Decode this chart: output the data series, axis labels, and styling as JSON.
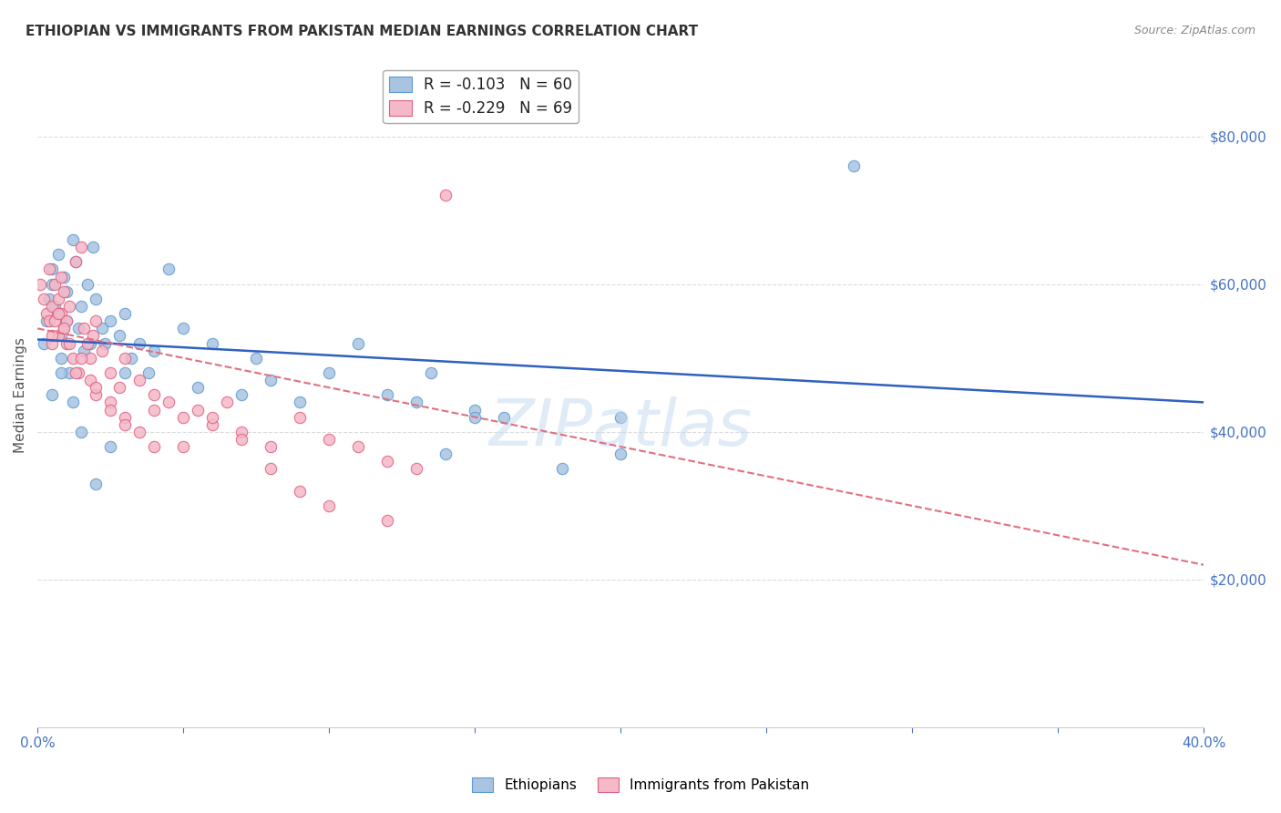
{
  "title": "ETHIOPIAN VS IMMIGRANTS FROM PAKISTAN MEDIAN EARNINGS CORRELATION CHART",
  "source": "Source: ZipAtlas.com",
  "ylabel": "Median Earnings",
  "xlabel": "",
  "xlim": [
    0.0,
    0.4
  ],
  "ylim": [
    0,
    90000
  ],
  "yticks": [
    0,
    20000,
    40000,
    60000,
    80000
  ],
  "ytick_labels": [
    "",
    "$20,000",
    "$40,000",
    "$60,000",
    "$80,000"
  ],
  "xticks": [
    0.0,
    0.05,
    0.1,
    0.15,
    0.2,
    0.25,
    0.3,
    0.35,
    0.4
  ],
  "xtick_labels": [
    "0.0%",
    "",
    "",
    "",
    "",
    "",
    "",
    "",
    "40.0%"
  ],
  "blue_R": -0.103,
  "blue_N": 60,
  "pink_R": -0.229,
  "pink_N": 69,
  "blue_label": "Ethiopians",
  "pink_label": "Immigrants from Pakistan",
  "blue_color": "#a8c4e0",
  "blue_edge": "#5b9bd5",
  "pink_color": "#f4b8c8",
  "pink_edge": "#e06080",
  "trend_blue_color": "#3060c0",
  "trend_pink_color": "#e07080",
  "axis_color": "#4472c4",
  "grid_color": "#cccccc",
  "title_color": "#333333",
  "watermark_color": "#c0d8f0",
  "blue_x": [
    0.002,
    0.003,
    0.004,
    0.005,
    0.005,
    0.006,
    0.007,
    0.007,
    0.008,
    0.008,
    0.009,
    0.01,
    0.01,
    0.011,
    0.012,
    0.013,
    0.014,
    0.015,
    0.016,
    0.017,
    0.018,
    0.019,
    0.02,
    0.022,
    0.023,
    0.025,
    0.028,
    0.03,
    0.032,
    0.035,
    0.038,
    0.04,
    0.045,
    0.05,
    0.055,
    0.06,
    0.07,
    0.075,
    0.08,
    0.09,
    0.1,
    0.11,
    0.12,
    0.13,
    0.135,
    0.14,
    0.15,
    0.16,
    0.18,
    0.2,
    0.005,
    0.008,
    0.012,
    0.015,
    0.02,
    0.025,
    0.03,
    0.15,
    0.2,
    0.28
  ],
  "blue_y": [
    52000,
    55000,
    58000,
    60000,
    62000,
    57000,
    56000,
    64000,
    50000,
    53000,
    61000,
    59000,
    55000,
    48000,
    66000,
    63000,
    54000,
    57000,
    51000,
    60000,
    52000,
    65000,
    58000,
    54000,
    52000,
    55000,
    53000,
    56000,
    50000,
    52000,
    48000,
    51000,
    62000,
    54000,
    46000,
    52000,
    45000,
    50000,
    47000,
    44000,
    48000,
    52000,
    45000,
    44000,
    48000,
    37000,
    43000,
    42000,
    35000,
    42000,
    45000,
    48000,
    44000,
    40000,
    33000,
    38000,
    48000,
    42000,
    37000,
    76000
  ],
  "pink_x": [
    0.001,
    0.002,
    0.003,
    0.004,
    0.004,
    0.005,
    0.005,
    0.006,
    0.006,
    0.007,
    0.007,
    0.008,
    0.008,
    0.009,
    0.009,
    0.01,
    0.01,
    0.011,
    0.012,
    0.013,
    0.014,
    0.015,
    0.016,
    0.017,
    0.018,
    0.019,
    0.02,
    0.022,
    0.025,
    0.028,
    0.03,
    0.035,
    0.04,
    0.045,
    0.05,
    0.055,
    0.06,
    0.065,
    0.07,
    0.08,
    0.09,
    0.1,
    0.11,
    0.12,
    0.13,
    0.005,
    0.007,
    0.009,
    0.011,
    0.013,
    0.015,
    0.018,
    0.02,
    0.025,
    0.03,
    0.035,
    0.04,
    0.05,
    0.06,
    0.07,
    0.08,
    0.09,
    0.1,
    0.12,
    0.14,
    0.02,
    0.025,
    0.03,
    0.04
  ],
  "pink_y": [
    60000,
    58000,
    56000,
    55000,
    62000,
    57000,
    52000,
    60000,
    55000,
    58000,
    53000,
    61000,
    56000,
    59000,
    54000,
    52000,
    55000,
    57000,
    50000,
    63000,
    48000,
    65000,
    54000,
    52000,
    50000,
    53000,
    55000,
    51000,
    48000,
    46000,
    50000,
    47000,
    45000,
    44000,
    42000,
    43000,
    41000,
    44000,
    40000,
    38000,
    42000,
    39000,
    38000,
    36000,
    35000,
    53000,
    56000,
    54000,
    52000,
    48000,
    50000,
    47000,
    45000,
    44000,
    42000,
    40000,
    43000,
    38000,
    42000,
    39000,
    35000,
    32000,
    30000,
    28000,
    72000,
    46000,
    43000,
    41000,
    38000
  ],
  "blue_trend_x": [
    0.0,
    0.4
  ],
  "blue_trend_y": [
    52500,
    44000
  ],
  "pink_trend_x": [
    0.0,
    0.4
  ],
  "pink_trend_y": [
    54000,
    22000
  ],
  "background_color": "#ffffff",
  "fig_width": 14.06,
  "fig_height": 8.92,
  "dpi": 100
}
